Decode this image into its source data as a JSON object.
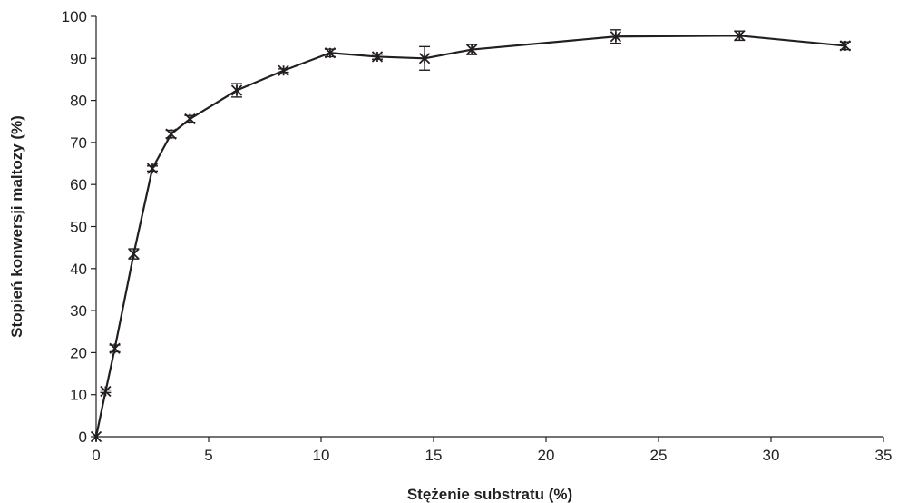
{
  "chart_data": {
    "type": "scatter",
    "title": "",
    "xlabel": "Stężenie substratu (%)",
    "ylabel": "Stopień konwersji maltozy (%)",
    "xlim": [
      0,
      35
    ],
    "ylim": [
      0,
      100
    ],
    "x_ticks": [
      "0",
      "5",
      "10",
      "15",
      "20",
      "25",
      "30",
      "35"
    ],
    "y_ticks": [
      "0",
      "10",
      "20",
      "30",
      "40",
      "50",
      "60",
      "70",
      "80",
      "90",
      "100"
    ],
    "grid": false,
    "legend": "none",
    "line_color": "#231f20",
    "series": [
      {
        "x": [
          0,
          0.42,
          0.83,
          1.67,
          2.5,
          3.33,
          4.17,
          6.25,
          8.33,
          10.4,
          12.5,
          14.6,
          16.7,
          23.1,
          28.6,
          33.3
        ],
        "y": [
          0,
          10.8,
          21.0,
          43.5,
          63.8,
          72.0,
          75.6,
          82.4,
          87.1,
          91.3,
          90.4,
          90.0,
          92.1,
          95.2,
          95.4,
          93.0
        ],
        "err": [
          0,
          0.3,
          0.8,
          1.2,
          0.6,
          0.9,
          0.8,
          1.6,
          0.4,
          0.9,
          0.6,
          2.8,
          1.2,
          1.6,
          1.1,
          0.9
        ]
      }
    ]
  }
}
